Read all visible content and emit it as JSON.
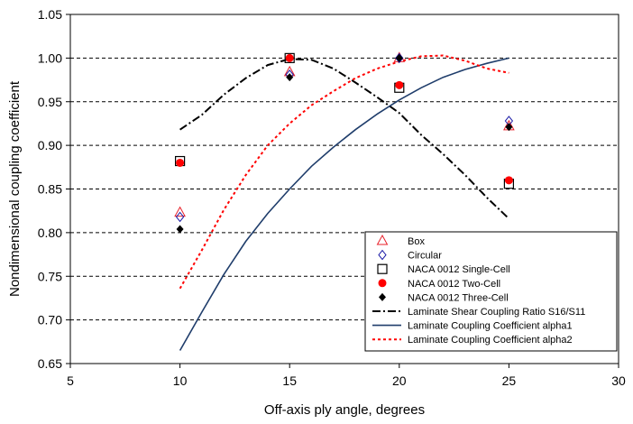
{
  "chart_data": {
    "type": "scatter",
    "title": "",
    "xlabel": "Off-axis ply angle, degrees",
    "ylabel": "Nondimensional coupling coefficient",
    "xlim": [
      5,
      30
    ],
    "ylim": [
      0.65,
      1.05
    ],
    "xticks": [
      5,
      10,
      15,
      20,
      25,
      30
    ],
    "xtick_labels": [
      "5",
      "10",
      "15",
      "20",
      "25",
      "30"
    ],
    "yticks": [
      0.65,
      0.7,
      0.75,
      0.8,
      0.85,
      0.9,
      0.95,
      1.0,
      1.05
    ],
    "ytick_labels": [
      "0.65",
      "0.70",
      "0.75",
      "0.80",
      "0.85",
      "0.90",
      "0.95",
      "1.00",
      "1.05"
    ],
    "grid": "horizontal-dashed",
    "legend_position": "bottom-right",
    "scatter_series": [
      {
        "name": "Box",
        "marker": "triangle-open",
        "color": "#e8202a",
        "x": [
          10,
          15,
          20,
          25
        ],
        "y": [
          0.823,
          0.984,
          1.0,
          0.922
        ]
      },
      {
        "name": "Circular",
        "marker": "diamond-open",
        "color": "#1a1aa6",
        "x": [
          10,
          15,
          20,
          25
        ],
        "y": [
          0.818,
          0.981,
          1.0,
          0.928
        ]
      },
      {
        "name": "NACA 0012 Single-Cell",
        "marker": "square-open",
        "color": "#000000",
        "x": [
          10,
          15,
          20,
          25
        ],
        "y": [
          0.882,
          1.0,
          0.966,
          0.856
        ]
      },
      {
        "name": "NACA 0012 Two-Cell",
        "marker": "circle-filled",
        "color": "#ff0000",
        "x": [
          10,
          15,
          20,
          25
        ],
        "y": [
          0.88,
          1.0,
          0.969,
          0.86
        ]
      },
      {
        "name": "NACA 0012 Three-Cell",
        "marker": "diamond-filled",
        "color": "#000000",
        "x": [
          10,
          15,
          20,
          25
        ],
        "y": [
          0.804,
          0.978,
          1.0,
          0.921
        ]
      }
    ],
    "line_series": [
      {
        "name": "Laminate Shear Coupling Ratio S16/S11",
        "style": "dashdot",
        "color": "#000000",
        "x": [
          10,
          11,
          12,
          13,
          14,
          15,
          16,
          17,
          18,
          19,
          20,
          21,
          22,
          23,
          24,
          25
        ],
        "y": [
          0.918,
          0.935,
          0.958,
          0.977,
          0.992,
          0.999,
          0.998,
          0.988,
          0.972,
          0.955,
          0.937,
          0.912,
          0.89,
          0.866,
          0.84,
          0.816
        ]
      },
      {
        "name": "Laminate Coupling Coefficient alpha1",
        "style": "solid",
        "color": "#1f3d6b",
        "x": [
          10,
          11,
          12,
          13,
          14,
          15,
          16,
          17,
          18,
          19,
          20,
          21,
          22,
          23,
          24,
          25
        ],
        "y": [
          0.665,
          0.709,
          0.752,
          0.79,
          0.822,
          0.85,
          0.876,
          0.898,
          0.918,
          0.936,
          0.952,
          0.966,
          0.978,
          0.987,
          0.994,
          1.0
        ]
      },
      {
        "name": "Laminate Coupling Coefficient alpha2",
        "style": "dotted",
        "color": "#ff0000",
        "x": [
          10,
          11,
          12,
          13,
          14,
          15,
          16,
          17,
          18,
          19,
          20,
          21,
          22,
          23,
          24,
          25
        ],
        "y": [
          0.736,
          0.78,
          0.826,
          0.866,
          0.9,
          0.925,
          0.946,
          0.962,
          0.977,
          0.988,
          0.996,
          1.002,
          1.003,
          0.997,
          0.988,
          0.983
        ]
      }
    ]
  }
}
